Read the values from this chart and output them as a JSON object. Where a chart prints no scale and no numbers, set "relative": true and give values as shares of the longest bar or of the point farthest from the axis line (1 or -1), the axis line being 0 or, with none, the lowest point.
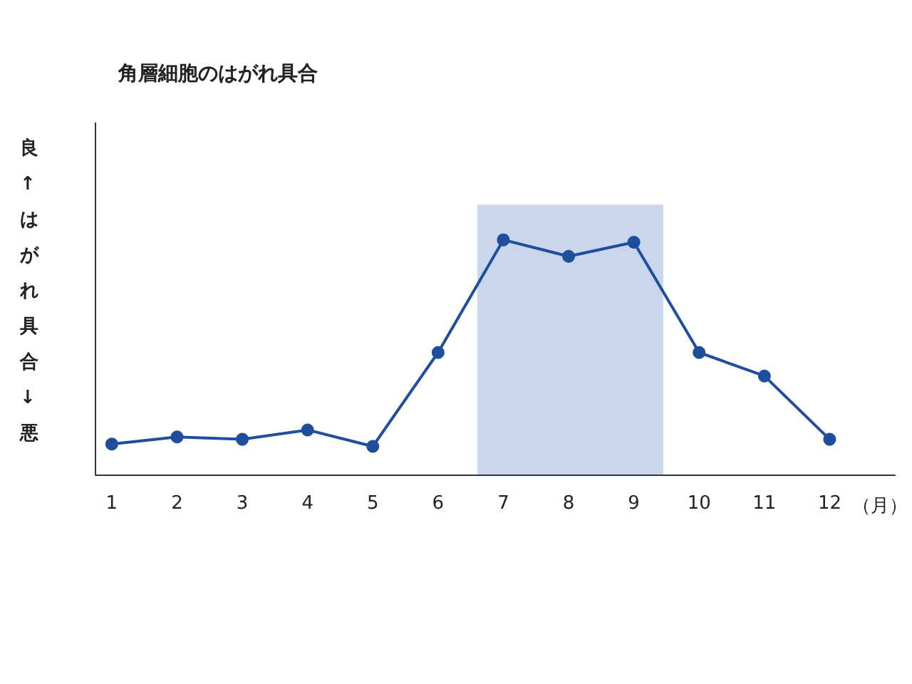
{
  "chart_data": {
    "type": "line",
    "title": "角層細胞のはがれ具合",
    "xlabel": "（月）",
    "ylabel": "良↑はがれ具合↓悪",
    "relative": true,
    "x": [
      1,
      2,
      3,
      4,
      5,
      6,
      7,
      8,
      9,
      10,
      11,
      12
    ],
    "xlim": [
      0.75,
      13
    ],
    "xticks": [
      1,
      2,
      3,
      4,
      5,
      6,
      7,
      8,
      9,
      10,
      11,
      12
    ],
    "series": [
      {
        "color": "#1f4e9c",
        "values": [
          0.13,
          0.16,
          0.15,
          0.19,
          0.12,
          0.52,
          1,
          0.93,
          0.99,
          0.52,
          0.42,
          0.15
        ]
      }
    ],
    "bands": [
      {
        "axis": "x",
        "from": 6.6,
        "to": 9.45,
        "color": "#c9d6ec"
      }
    ],
    "marker": "circle",
    "line_style": "solid"
  }
}
